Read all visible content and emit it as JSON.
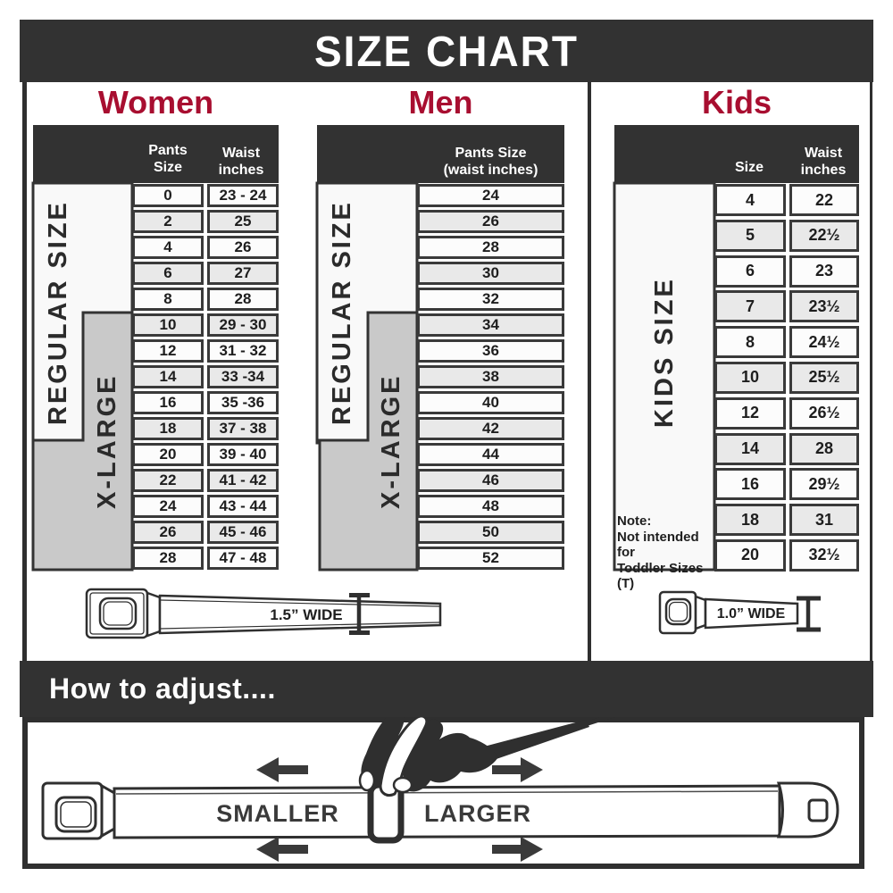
{
  "title": "SIZE CHART",
  "colors": {
    "accent": "#a80e30",
    "dark_bar": "#323232",
    "table_alt_row": "#e9e9e9",
    "xlarge_gray": "#c9c9c9"
  },
  "sections": {
    "women": {
      "heading": "Women",
      "col1_header": "Pants Size",
      "col2_header_line1": "Waist",
      "col2_header_line2": "inches",
      "regular_label": "REGULAR SIZE",
      "xlarge_label": "X-LARGE",
      "rows": [
        {
          "size": "0",
          "waist": "23 - 24"
        },
        {
          "size": "2",
          "waist": "25"
        },
        {
          "size": "4",
          "waist": "26"
        },
        {
          "size": "6",
          "waist": "27"
        },
        {
          "size": "8",
          "waist": "28"
        },
        {
          "size": "10",
          "waist": "29 - 30"
        },
        {
          "size": "12",
          "waist": "31 - 32"
        },
        {
          "size": "14",
          "waist": "33 -34"
        },
        {
          "size": "16",
          "waist": "35 -36"
        },
        {
          "size": "18",
          "waist": "37 - 38"
        },
        {
          "size": "20",
          "waist": "39 - 40"
        },
        {
          "size": "22",
          "waist": "41 - 42"
        },
        {
          "size": "24",
          "waist": "43 - 44"
        },
        {
          "size": "26",
          "waist": "45 - 46"
        },
        {
          "size": "28",
          "waist": "47 - 48"
        }
      ]
    },
    "men": {
      "heading": "Men",
      "col_header_line1": "Pants Size",
      "col_header_line2": "(waist inches)",
      "regular_label": "REGULAR SIZE",
      "xlarge_label": "X-LARGE",
      "rows": [
        "24",
        "26",
        "28",
        "30",
        "32",
        "34",
        "36",
        "38",
        "40",
        "42",
        "44",
        "46",
        "48",
        "50",
        "52"
      ]
    },
    "kids": {
      "heading": "Kids",
      "col1_header": "Size",
      "col2_header_line1": "Waist",
      "col2_header_line2": "inches",
      "side_label": "KIDS SIZE",
      "note_line1": "Note:",
      "note_line2": "Not intended for",
      "note_line3": "Toddler Sizes (T)",
      "rows": [
        {
          "size": "4",
          "waist": "22"
        },
        {
          "size": "5",
          "waist": "22½"
        },
        {
          "size": "6",
          "waist": "23"
        },
        {
          "size": "7",
          "waist": "23½"
        },
        {
          "size": "8",
          "waist": "24½"
        },
        {
          "size": "10",
          "waist": "25½"
        },
        {
          "size": "12",
          "waist": "26½"
        },
        {
          "size": "14",
          "waist": "28"
        },
        {
          "size": "16",
          "waist": "29½"
        },
        {
          "size": "18",
          "waist": "31"
        },
        {
          "size": "20",
          "waist": "32½"
        }
      ]
    }
  },
  "belts": {
    "adult_width_label": "1.5” WIDE",
    "kids_width_label": "1.0” WIDE"
  },
  "how_to_adjust": {
    "heading": "How to adjust....",
    "smaller_label": "SMALLER",
    "larger_label": "LARGER"
  }
}
